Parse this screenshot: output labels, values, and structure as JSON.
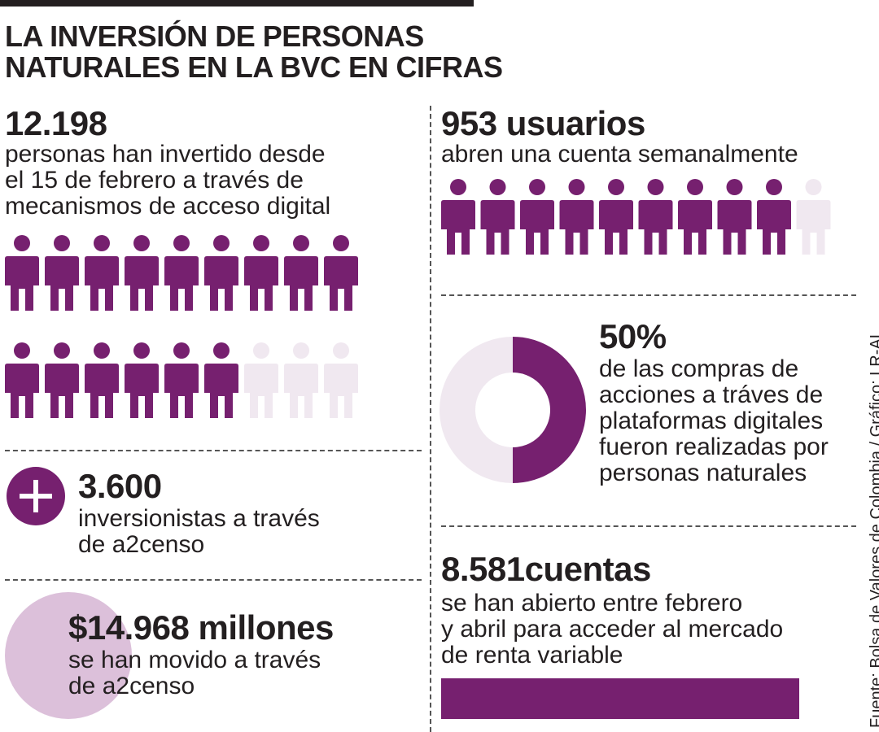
{
  "title_line1": "LA INVERSIÓN DE PERSONAS",
  "title_line2": "NATURALES EN LA BVC EN CIFRAS",
  "source": "Fuente: Bolsa de Valores de Colombia / Gráfico: LR-AL",
  "colors": {
    "accent": "#76206f",
    "light": "#f0e8f0",
    "bubble": "#dcc0da",
    "text": "#231f20"
  },
  "stats": {
    "personas": {
      "value": "12.198",
      "desc": [
        "personas han invertido desde",
        "el 15 de febrero a través de",
        "mecanismos de acceso digital"
      ]
    },
    "usuarios": {
      "value": "953 usuarios",
      "desc": [
        "abren una cuenta semanalmente"
      ]
    },
    "inversionistas": {
      "value": "3.600",
      "desc": [
        "inversionistas a través",
        "de a2censo"
      ]
    },
    "compras": {
      "value": "50%",
      "desc": [
        "de las compras de",
        "acciones a tráves de",
        "plataformas digitales",
        "fueron realizadas por",
        "personas naturales"
      ]
    },
    "millones": {
      "value": "$14.968 millones",
      "desc": [
        "se han movido a través",
        "de a2censo"
      ]
    },
    "cuentas": {
      "value": "8.581cuentas",
      "desc": [
        "se han abierto entre febrero",
        "y abril para acceder al mercado",
        "de renta variable"
      ]
    }
  },
  "chart_data": [
    {
      "type": "pictogram",
      "icons_total": 18,
      "icons_filled": 15,
      "icon": "person-icon"
    },
    {
      "type": "pictogram",
      "icons_total": 10,
      "icons_filled": 9,
      "icon": "person-icon"
    },
    {
      "type": "pie",
      "values": [
        50,
        50
      ],
      "style": "donut"
    },
    {
      "type": "bar",
      "values": [
        100
      ]
    }
  ]
}
